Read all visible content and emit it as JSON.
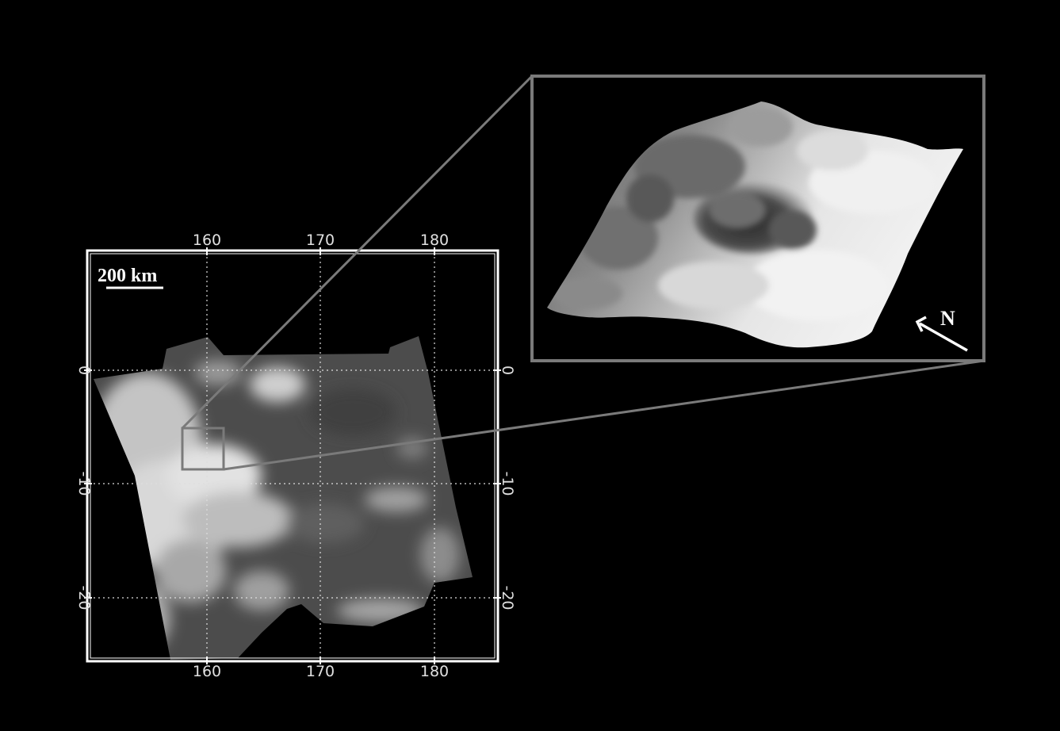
{
  "map": {
    "longitude_ticks": [
      "160",
      "170",
      "180"
    ],
    "latitude_ticks": [
      "0",
      "-10",
      "-20"
    ]
  },
  "scale_bar": {
    "label": "200 km"
  },
  "inset": {
    "north_label": "N"
  },
  "colors": {
    "background": "#000000",
    "frame": "#ffffff",
    "zoom_box": "#7a7a7a",
    "grid": "#dddddd"
  }
}
